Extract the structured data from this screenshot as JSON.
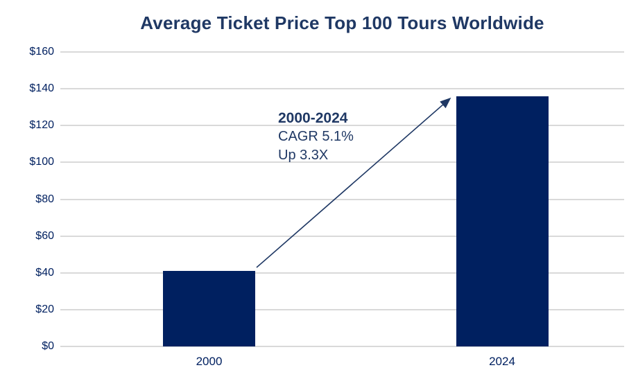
{
  "title": "Average Ticket Price Top 100 Tours Worldwide",
  "colors": {
    "bar": "#002060",
    "title_text": "#1f3864",
    "axis_label_text": "#002060",
    "gridline": "#d9d9d9",
    "arrow": "#1f3864",
    "background": "#ffffff"
  },
  "annotation": {
    "line1": "2000-2024",
    "line2": "CAGR 5.1%",
    "line3": "Up 3.3X"
  },
  "chart_data": {
    "type": "bar",
    "title": "Average Ticket Price Top 100 Tours Worldwide",
    "categories": [
      "2000",
      "2024"
    ],
    "values": [
      41,
      136
    ],
    "xlabel": "",
    "ylabel": "",
    "ylim": [
      0,
      160
    ],
    "ytick_step": 20,
    "ytick_values": [
      0,
      20,
      40,
      60,
      80,
      100,
      120,
      140,
      160
    ],
    "ytick_labels": [
      "$0",
      "$20",
      "$40",
      "$60",
      "$80",
      "$100",
      "$120",
      "$140",
      "$160"
    ],
    "grid": true,
    "legend": false,
    "bar_color": "#002060",
    "annotation": {
      "lines": [
        "2000-2024",
        "CAGR 5.1%",
        "Up 3.3X"
      ],
      "arrow": {
        "from_category": "2000",
        "to_category": "2024"
      }
    }
  }
}
